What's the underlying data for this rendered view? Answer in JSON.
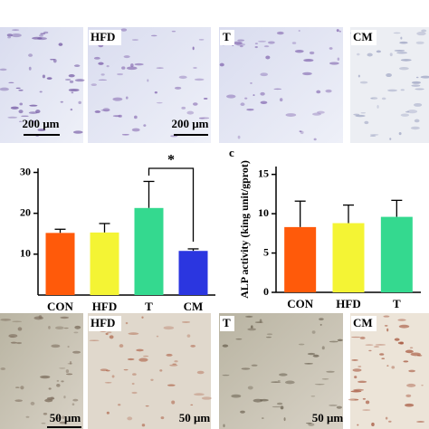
{
  "image_panels": {
    "top": {
      "labels": [
        "HFD",
        "T",
        "CM"
      ],
      "scale_bar": "200 μm"
    },
    "bottom": {
      "labels": [
        "HFD",
        "T",
        "CM"
      ],
      "scale_bar": "50 μm"
    }
  },
  "chart_data": [
    {
      "type": "bar",
      "categories": [
        "CON",
        "HFD",
        "T",
        "CM"
      ],
      "values": [
        15.2,
        15.3,
        21.3,
        10.8
      ],
      "errors": [
        0.9,
        2.2,
        6.5,
        0.5
      ],
      "colors": [
        "#ff5a0a",
        "#f4f434",
        "#34d98f",
        "#2b36e0"
      ],
      "ylim": [
        0,
        31
      ],
      "yticks": [
        10,
        20,
        30
      ],
      "annotation": "*"
    },
    {
      "type": "bar",
      "panel_label": "c",
      "y_label": "ALP activity (king unit/gprot)",
      "categories": [
        "CON",
        "HFD",
        "T"
      ],
      "values": [
        8.3,
        8.8,
        9.6
      ],
      "errors": [
        3.3,
        2.3,
        2.1
      ],
      "colors": [
        "#ff5a0a",
        "#f4f434",
        "#34d98f"
      ],
      "ylim": [
        0,
        16
      ],
      "yticks": [
        0,
        5,
        10,
        15
      ]
    }
  ]
}
